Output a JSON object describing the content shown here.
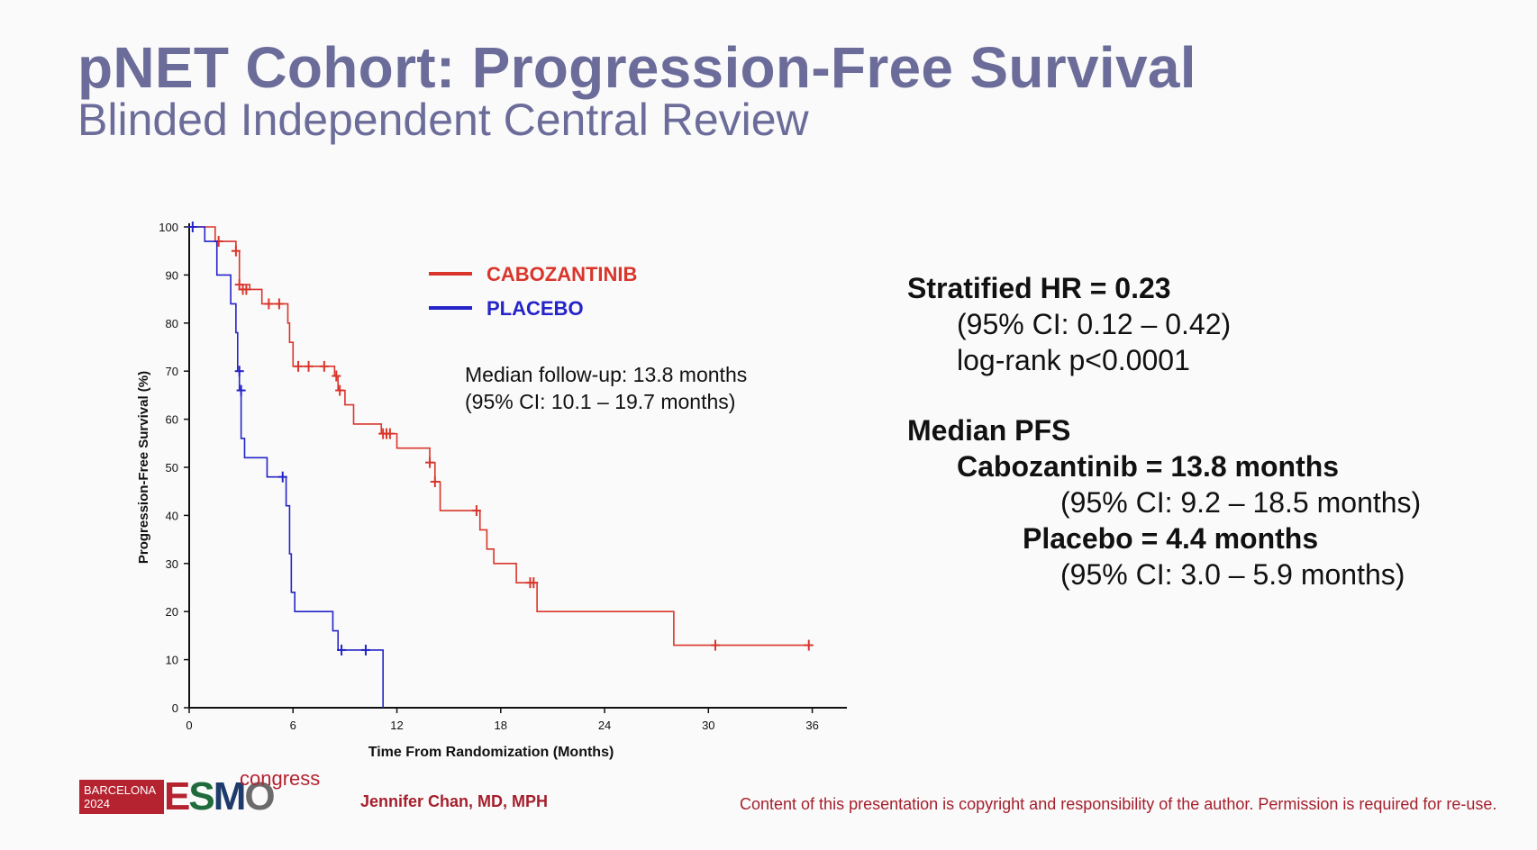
{
  "slide": {
    "title": "pNET Cohort: Progression-Free Survival",
    "subtitle": "Blinded Independent Central Review"
  },
  "chart_data": {
    "type": "line",
    "step": true,
    "xlabel": "Time From Randomization (Months)",
    "ylabel": "Progression-Free Survival (%)",
    "xlim": [
      0,
      38
    ],
    "ylim": [
      0,
      100
    ],
    "xticks": [
      0,
      6,
      12,
      18,
      24,
      30,
      36
    ],
    "yticks": [
      0,
      10,
      20,
      30,
      40,
      50,
      60,
      70,
      80,
      90,
      100
    ],
    "legend_position": "top-center",
    "annotation": [
      "Median follow-up: 13.8 months",
      "(95% CI: 10.1 – 19.7 months)"
    ],
    "series": [
      {
        "name": "CABOZANTINIB",
        "color": "#d9352b",
        "points": [
          [
            0,
            100
          ],
          [
            1,
            100
          ],
          [
            1.5,
            97
          ],
          [
            2.5,
            97
          ],
          [
            2.7,
            95
          ],
          [
            2.9,
            88
          ],
          [
            3.5,
            87
          ],
          [
            4.2,
            84
          ],
          [
            5.5,
            84
          ],
          [
            5.7,
            80
          ],
          [
            5.8,
            76
          ],
          [
            6.0,
            71
          ],
          [
            8.3,
            71
          ],
          [
            8.4,
            69
          ],
          [
            8.6,
            66
          ],
          [
            9,
            63
          ],
          [
            9.5,
            59
          ],
          [
            11,
            59
          ],
          [
            11.1,
            57
          ],
          [
            11.8,
            57
          ],
          [
            12,
            54
          ],
          [
            13.8,
            54
          ],
          [
            13.9,
            51
          ],
          [
            14.2,
            47
          ],
          [
            14.5,
            41
          ],
          [
            16.5,
            41
          ],
          [
            16.8,
            37
          ],
          [
            17.2,
            33
          ],
          [
            17.6,
            30
          ],
          [
            18.5,
            30
          ],
          [
            18.9,
            26
          ],
          [
            20,
            26
          ],
          [
            20.1,
            20
          ],
          [
            27.9,
            20
          ],
          [
            28,
            13
          ],
          [
            36,
            13
          ]
        ],
        "censored": [
          [
            1.7,
            97
          ],
          [
            2.7,
            95
          ],
          [
            2.9,
            88
          ],
          [
            3.1,
            87
          ],
          [
            3.3,
            87
          ],
          [
            4.6,
            84
          ],
          [
            5.2,
            84
          ],
          [
            6.3,
            71
          ],
          [
            6.9,
            71
          ],
          [
            7.8,
            71
          ],
          [
            8.5,
            69
          ],
          [
            8.7,
            66
          ],
          [
            11.2,
            57
          ],
          [
            11.4,
            57
          ],
          [
            11.6,
            57
          ],
          [
            13.9,
            51
          ],
          [
            14.2,
            47
          ],
          [
            16.6,
            41
          ],
          [
            19.7,
            26
          ],
          [
            19.9,
            26
          ],
          [
            30.4,
            13
          ],
          [
            35.8,
            13
          ]
        ]
      },
      {
        "name": "PLACEBO",
        "color": "#2424c8",
        "points": [
          [
            0,
            100
          ],
          [
            0.8,
            100
          ],
          [
            0.9,
            97
          ],
          [
            1.5,
            97
          ],
          [
            1.6,
            90
          ],
          [
            2.3,
            90
          ],
          [
            2.4,
            84
          ],
          [
            2.6,
            84
          ],
          [
            2.7,
            78
          ],
          [
            2.8,
            70
          ],
          [
            2.9,
            66
          ],
          [
            3.0,
            56
          ],
          [
            3.2,
            52
          ],
          [
            4.4,
            52
          ],
          [
            4.5,
            48
          ],
          [
            5.5,
            48
          ],
          [
            5.6,
            42
          ],
          [
            5.8,
            32
          ],
          [
            5.9,
            24
          ],
          [
            6.1,
            20
          ],
          [
            8.2,
            20
          ],
          [
            8.3,
            16
          ],
          [
            8.6,
            12
          ],
          [
            11.2,
            12
          ],
          [
            11.2,
            0
          ]
        ],
        "censored": [
          [
            0.2,
            100
          ],
          [
            2.9,
            70
          ],
          [
            3.0,
            66
          ],
          [
            5.4,
            48
          ],
          [
            8.8,
            12
          ],
          [
            10.2,
            12
          ]
        ]
      }
    ]
  },
  "stats": {
    "hr_label": "Stratified HR = 0.23",
    "hr_ci": "(95% CI: 0.12 – 0.42)",
    "logrank": "log-rank p<0.0001",
    "median_label": "Median PFS",
    "cabo_label": "Cabozantinib = 13.8 months",
    "cabo_ci": "(95% CI: 9.2 – 18.5 months)",
    "placebo_label": "Placebo = 4.4 months",
    "placebo_ci": "(95% CI: 3.0 – 5.9 months)"
  },
  "footer": {
    "logo_city": "BARCELONA",
    "logo_year": "2024",
    "logo_e": "E",
    "logo_s": "S",
    "logo_m": "M",
    "logo_o": "O",
    "logo_congress": "congress",
    "author": "Jennifer Chan, MD, MPH",
    "copyright": "Content of this presentation is copyright and responsibility of the author. Permission is required for re-use."
  }
}
